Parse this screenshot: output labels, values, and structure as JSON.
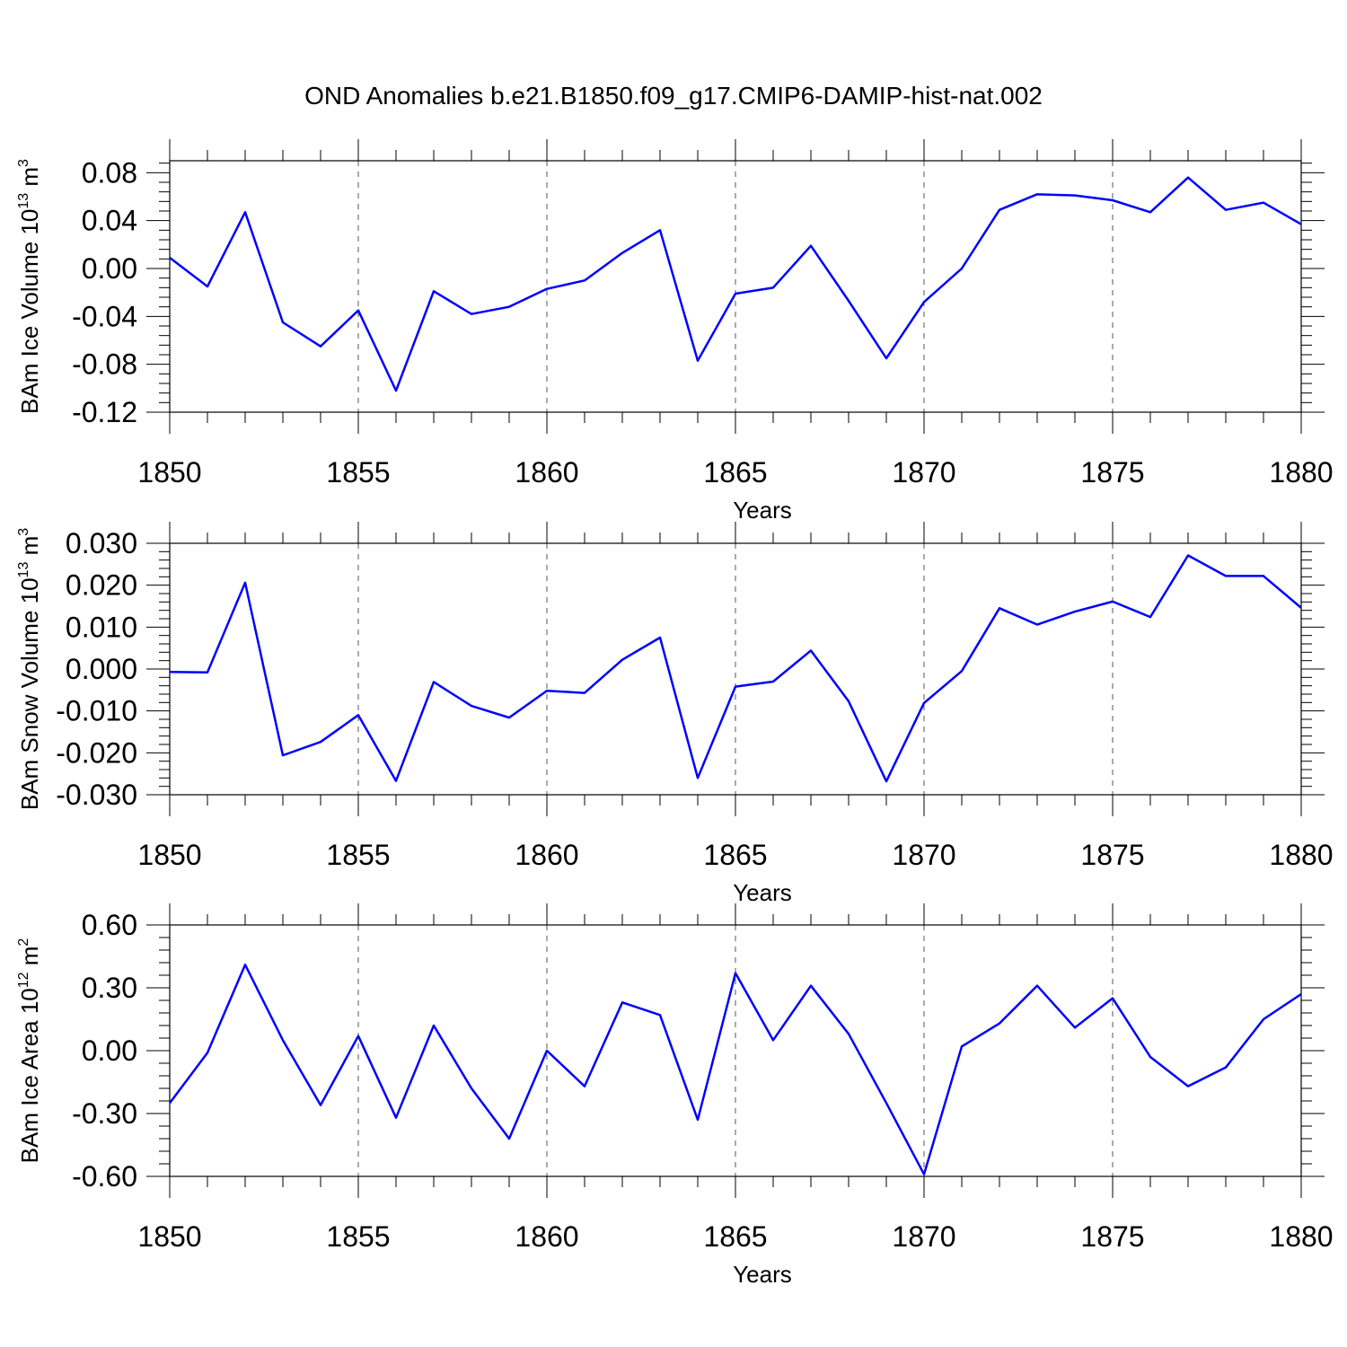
{
  "title": "OND Anomalies b.e21.B1850.f09_g17.CMIP6-DAMIP-hist-nat.002",
  "chart_data": [
    {
      "type": "line",
      "ylabel": "BAm Ice Volume 10",
      "ylabel_exponent": "13",
      "ylabel_unit": " m",
      "ylabel_unit_exponent": "3",
      "xlabel": "Years",
      "xlim": [
        1850,
        1880
      ],
      "ylim": [
        -0.12,
        0.09
      ],
      "yticks": [
        -0.12,
        -0.08,
        -0.04,
        0.0,
        0.04,
        0.08
      ],
      "ytick_labels": [
        "-0.12",
        "-0.08",
        "-0.04",
        "0.00",
        "0.04",
        "0.08"
      ],
      "xticks": [
        1850,
        1855,
        1860,
        1865,
        1870,
        1875,
        1880
      ],
      "xtick_labels": [
        "1850",
        "1855",
        "1860",
        "1865",
        "1870",
        "1875",
        "1880"
      ],
      "grid": "vertical dashed",
      "color": "#0000ff",
      "x": [
        1850,
        1851,
        1852,
        1853,
        1854,
        1855,
        1856,
        1857,
        1858,
        1859,
        1860,
        1861,
        1862,
        1863,
        1864,
        1865,
        1866,
        1867,
        1868,
        1869,
        1870,
        1871,
        1872,
        1873,
        1874,
        1875,
        1876,
        1877,
        1878,
        1879,
        1880
      ],
      "values": [
        0.009,
        -0.015,
        0.047,
        -0.045,
        -0.065,
        -0.035,
        -0.102,
        -0.019,
        -0.038,
        -0.032,
        -0.017,
        -0.01,
        0.013,
        0.032,
        -0.077,
        -0.021,
        -0.016,
        0.019,
        -0.027,
        -0.075,
        -0.028,
        0.0,
        0.049,
        0.062,
        0.061,
        0.057,
        0.047,
        0.076,
        0.049,
        0.055,
        0.037
      ]
    },
    {
      "type": "line",
      "ylabel": "BAm Snow Volume 10",
      "ylabel_exponent": "13",
      "ylabel_unit": " m",
      "ylabel_unit_exponent": "3",
      "xlabel": "Years",
      "xlim": [
        1850,
        1880
      ],
      "ylim": [
        -0.03,
        0.03
      ],
      "yticks": [
        -0.03,
        -0.02,
        -0.01,
        0.0,
        0.01,
        0.02,
        0.03
      ],
      "ytick_labels": [
        "-0.030",
        "-0.020",
        "-0.010",
        "0.000",
        "0.010",
        "0.020",
        "0.030"
      ],
      "xticks": [
        1850,
        1855,
        1860,
        1865,
        1870,
        1875,
        1880
      ],
      "xtick_labels": [
        "1850",
        "1855",
        "1860",
        "1865",
        "1870",
        "1875",
        "1880"
      ],
      "grid": "vertical dashed",
      "color": "#0000ff",
      "x": [
        1850,
        1851,
        1852,
        1853,
        1854,
        1855,
        1856,
        1857,
        1858,
        1859,
        1860,
        1861,
        1862,
        1863,
        1864,
        1865,
        1866,
        1867,
        1868,
        1869,
        1870,
        1871,
        1872,
        1873,
        1874,
        1875,
        1876,
        1877,
        1878,
        1879,
        1880
      ],
      "values": [
        -0.0007,
        -0.0008,
        0.0206,
        -0.0206,
        -0.0174,
        -0.011,
        -0.0267,
        -0.0031,
        -0.0088,
        -0.0116,
        -0.0052,
        -0.0057,
        0.0022,
        0.0075,
        -0.026,
        -0.0042,
        -0.003,
        0.0044,
        -0.0077,
        -0.0268,
        -0.0081,
        -0.0005,
        0.0145,
        0.0106,
        0.0137,
        0.0161,
        0.0124,
        0.0271,
        0.0222,
        0.0222,
        0.0146
      ]
    },
    {
      "type": "line",
      "ylabel": "BAm Ice Area 10",
      "ylabel_exponent": "12",
      "ylabel_unit": " m",
      "ylabel_unit_exponent": "2",
      "xlabel": "Years",
      "xlim": [
        1850,
        1880
      ],
      "ylim": [
        -0.6,
        0.6
      ],
      "yticks": [
        -0.6,
        -0.3,
        0.0,
        0.3,
        0.6
      ],
      "ytick_labels": [
        "-0.60",
        "-0.30",
        "0.00",
        "0.30",
        "0.60"
      ],
      "xticks": [
        1850,
        1855,
        1860,
        1865,
        1870,
        1875,
        1880
      ],
      "xtick_labels": [
        "1850",
        "1855",
        "1860",
        "1865",
        "1870",
        "1875",
        "1880"
      ],
      "grid": "vertical dashed",
      "color": "#0000ff",
      "x": [
        1850,
        1851,
        1852,
        1853,
        1854,
        1855,
        1856,
        1857,
        1858,
        1859,
        1860,
        1861,
        1862,
        1863,
        1864,
        1865,
        1866,
        1867,
        1868,
        1869,
        1870,
        1871,
        1872,
        1873,
        1874,
        1875,
        1876,
        1877,
        1878,
        1879,
        1880
      ],
      "values": [
        -0.25,
        -0.01,
        0.41,
        0.05,
        -0.26,
        0.07,
        -0.32,
        0.12,
        -0.18,
        -0.42,
        0.0,
        -0.17,
        0.23,
        0.17,
        -0.33,
        0.37,
        0.05,
        0.31,
        0.08,
        -0.25,
        -0.59,
        0.02,
        0.13,
        0.31,
        0.11,
        0.25,
        -0.03,
        -0.17,
        -0.08,
        0.15,
        0.27
      ]
    }
  ]
}
